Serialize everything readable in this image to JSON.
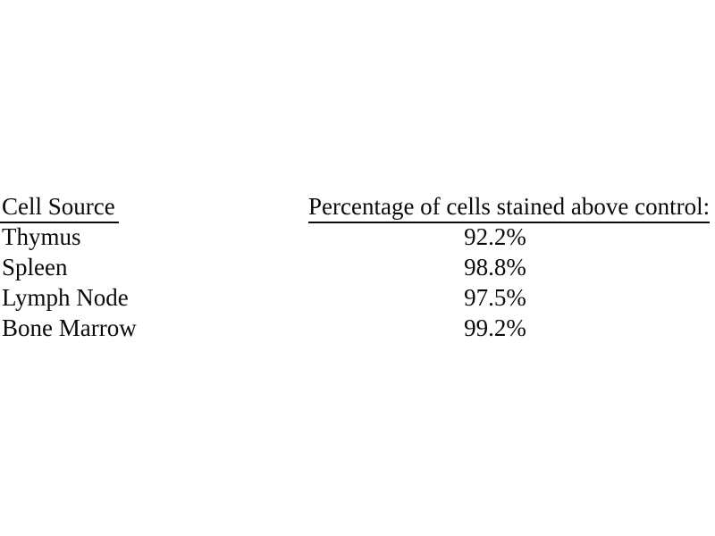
{
  "page": {
    "background_color": "#ffffff",
    "text_color": "#0a0a0a"
  },
  "table": {
    "columns": [
      {
        "header": "Cell Source"
      },
      {
        "header": "Percentage of cells stained above control:"
      }
    ],
    "rows": [
      {
        "cell_source": "Thymus",
        "percentage": "92.2%"
      },
      {
        "cell_source": "Spleen",
        "percentage": "98.8%"
      },
      {
        "cell_source": "Lymph Node",
        "percentage": "97.5%"
      },
      {
        "cell_source": "Bone Marrow",
        "percentage": "99.2%"
      }
    ]
  }
}
